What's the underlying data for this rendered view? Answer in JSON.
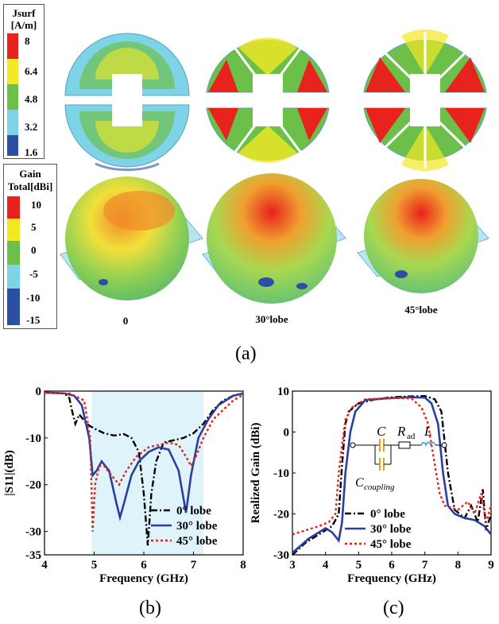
{
  "figure": {
    "panel_a_label": "(a)",
    "panel_b_label": "(b)",
    "panel_c_label": "(c)",
    "lobe_labels": [
      "0",
      "30°lobe",
      "45°lobe"
    ],
    "colors": {
      "red": "#e8221c",
      "orange": "#f7941d",
      "yellow": "#f2e824",
      "green": "#6cc04a",
      "cyan": "#7fd3e6",
      "blue": "#2a4fa3",
      "shade": "#dff3fb"
    }
  },
  "jsurf_legend": {
    "title_line1": "Jsurf",
    "title_line2": "[A/m]",
    "ticks": [
      "8",
      "6.4",
      "4.8",
      "3.2",
      "1.6"
    ]
  },
  "gain_legend": {
    "title_line1": "Gain",
    "title_line2": "Total[dBi]",
    "ticks": [
      "10",
      "5",
      "0",
      "-5",
      "-10",
      "-15"
    ]
  },
  "chart_data": [
    {
      "type": "line",
      "xlabel": "Frequency (GHz)",
      "ylabel": "|S11|(dB)",
      "xlim": [
        4,
        8
      ],
      "ylim": [
        -35,
        0
      ],
      "x_ticks": [
        "4",
        "5",
        "6",
        "7",
        "8"
      ],
      "y_ticks": [
        "0",
        "-10",
        "-20",
        "-30",
        "-35"
      ],
      "shaded_band": [
        4.95,
        7.2
      ],
      "legend_position": "bottom-right",
      "series": [
        {
          "name": "0° lobe",
          "style": "dashdot",
          "color": "#000000",
          "points": [
            [
              4,
              -0.3
            ],
            [
              4.4,
              -0.5
            ],
            [
              4.5,
              -1.5
            ],
            [
              4.55,
              -4
            ],
            [
              4.62,
              -7
            ],
            [
              4.7,
              -5
            ],
            [
              4.85,
              -7
            ],
            [
              5.0,
              -8
            ],
            [
              5.2,
              -9
            ],
            [
              5.4,
              -9.5
            ],
            [
              5.6,
              -9.2
            ],
            [
              5.75,
              -10
            ],
            [
              5.9,
              -13
            ],
            [
              6.0,
              -22
            ],
            [
              6.08,
              -33
            ],
            [
              6.15,
              -22
            ],
            [
              6.25,
              -15
            ],
            [
              6.4,
              -11
            ],
            [
              6.6,
              -10.5
            ],
            [
              6.8,
              -10
            ],
            [
              7.0,
              -9
            ],
            [
              7.2,
              -7
            ],
            [
              7.4,
              -4
            ],
            [
              7.6,
              -2
            ],
            [
              7.8,
              -1
            ],
            [
              8,
              -0.5
            ]
          ]
        },
        {
          "name": "30° lobe",
          "style": "solid",
          "color": "#2a3f9e",
          "points": [
            [
              4,
              -0.3
            ],
            [
              4.4,
              -0.5
            ],
            [
              4.6,
              -1
            ],
            [
              4.75,
              -3
            ],
            [
              4.9,
              -10
            ],
            [
              4.97,
              -18
            ],
            [
              5.05,
              -17
            ],
            [
              5.15,
              -15
            ],
            [
              5.3,
              -17
            ],
            [
              5.45,
              -24
            ],
            [
              5.52,
              -27
            ],
            [
              5.6,
              -24
            ],
            [
              5.75,
              -18
            ],
            [
              5.9,
              -15
            ],
            [
              6.1,
              -13
            ],
            [
              6.3,
              -12
            ],
            [
              6.5,
              -12.5
            ],
            [
              6.7,
              -17
            ],
            [
              6.85,
              -26
            ],
            [
              6.95,
              -18
            ],
            [
              7.1,
              -10
            ],
            [
              7.3,
              -6
            ],
            [
              7.5,
              -3
            ],
            [
              7.8,
              -1
            ],
            [
              8,
              -0.5
            ]
          ]
        },
        {
          "name": "45° lobe",
          "style": "dotted",
          "color": "#e8221c",
          "points": [
            [
              4,
              -0.3
            ],
            [
              4.5,
              -0.5
            ],
            [
              4.8,
              -2
            ],
            [
              4.92,
              -10
            ],
            [
              4.97,
              -30
            ],
            [
              5.02,
              -20
            ],
            [
              5.1,
              -16
            ],
            [
              5.2,
              -16
            ],
            [
              5.35,
              -18
            ],
            [
              5.5,
              -20
            ],
            [
              5.65,
              -17
            ],
            [
              5.85,
              -14
            ],
            [
              6.1,
              -12
            ],
            [
              6.3,
              -11.5
            ],
            [
              6.5,
              -11
            ],
            [
              6.7,
              -11.5
            ],
            [
              6.85,
              -14
            ],
            [
              6.95,
              -16
            ],
            [
              7.05,
              -14
            ],
            [
              7.2,
              -10
            ],
            [
              7.4,
              -6
            ],
            [
              7.6,
              -4
            ],
            [
              7.8,
              -2
            ],
            [
              8,
              -0.8
            ]
          ]
        }
      ]
    },
    {
      "type": "line",
      "xlabel": "Frequency (GHz)",
      "ylabel": "Realized Gain (dBi)",
      "xlim": [
        3,
        9
      ],
      "ylim": [
        -30,
        10
      ],
      "x_ticks": [
        "3",
        "4",
        "5",
        "6",
        "7",
        "8",
        "9"
      ],
      "y_ticks": [
        "10",
        "0",
        "-10",
        "-20",
        "-30"
      ],
      "legend_position": "bottom-center",
      "inset": {
        "component_C": "C",
        "component_R": "R",
        "component_R_sub": "ad",
        "component_L": "L",
        "coupling_label": "C",
        "coupling_sub": "coupling"
      },
      "series": [
        {
          "name": "0° lobe",
          "style": "dashdot",
          "color": "#000000",
          "points": [
            [
              3,
              -30
            ],
            [
              3.4,
              -27
            ],
            [
              3.8,
              -25
            ],
            [
              4.2,
              -23
            ],
            [
              4.4,
              -20
            ],
            [
              4.5,
              -8
            ],
            [
              4.6,
              2
            ],
            [
              4.7,
              5
            ],
            [
              5.0,
              7
            ],
            [
              5.5,
              8
            ],
            [
              6.0,
              8.5
            ],
            [
              6.5,
              8.7
            ],
            [
              7.0,
              8.8
            ],
            [
              7.3,
              8
            ],
            [
              7.5,
              5
            ],
            [
              7.7,
              -10
            ],
            [
              7.9,
              -19
            ],
            [
              8.2,
              -21
            ],
            [
              8.4,
              -18
            ],
            [
              8.6,
              -22
            ],
            [
              8.75,
              -14
            ],
            [
              8.85,
              -24
            ],
            [
              9,
              -20
            ]
          ]
        },
        {
          "name": "30° lobe",
          "style": "solid",
          "color": "#2a3f9e",
          "points": [
            [
              3,
              -29.5
            ],
            [
              3.5,
              -26
            ],
            [
              4.0,
              -23.5
            ],
            [
              4.2,
              -24.5
            ],
            [
              4.4,
              -26.5
            ],
            [
              4.5,
              -22
            ],
            [
              4.6,
              -10
            ],
            [
              4.75,
              0
            ],
            [
              4.9,
              5
            ],
            [
              5.2,
              7.8
            ],
            [
              5.8,
              8.2
            ],
            [
              6.5,
              8.5
            ],
            [
              7.0,
              8.4
            ],
            [
              7.2,
              7
            ],
            [
              7.4,
              2
            ],
            [
              7.55,
              -10
            ],
            [
              7.7,
              -18
            ],
            [
              7.9,
              -20
            ],
            [
              8.2,
              -21
            ],
            [
              8.5,
              -21.5
            ],
            [
              8.8,
              -23
            ],
            [
              9,
              -25
            ]
          ]
        },
        {
          "name": "45° lobe",
          "style": "dotted",
          "color": "#e8221c",
          "points": [
            [
              3,
              -25
            ],
            [
              3.4,
              -24
            ],
            [
              3.8,
              -23
            ],
            [
              4.1,
              -22
            ],
            [
              4.3,
              -20
            ],
            [
              4.4,
              -10
            ],
            [
              4.5,
              -3
            ],
            [
              4.6,
              3
            ],
            [
              4.8,
              6
            ],
            [
              5.2,
              8
            ],
            [
              6.0,
              8.3
            ],
            [
              6.6,
              8.2
            ],
            [
              6.9,
              6
            ],
            [
              7.1,
              2
            ],
            [
              7.3,
              -8
            ],
            [
              7.45,
              -15
            ],
            [
              7.6,
              -18
            ],
            [
              8.0,
              -19
            ],
            [
              8.3,
              -17
            ],
            [
              8.5,
              -20
            ],
            [
              8.7,
              -15
            ],
            [
              8.85,
              -22
            ],
            [
              9,
              -18
            ]
          ]
        }
      ]
    }
  ]
}
